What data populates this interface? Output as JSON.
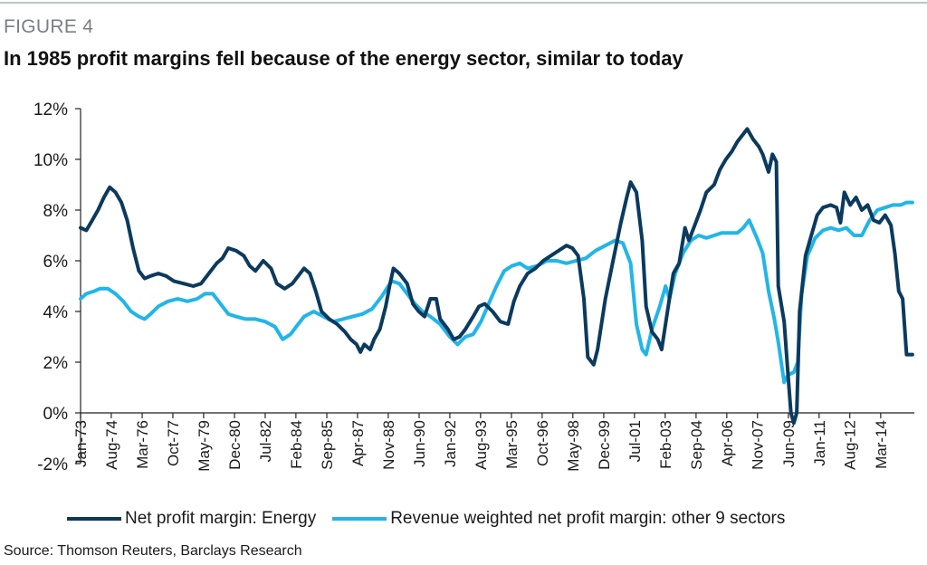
{
  "figure": {
    "label": "FIGURE 4",
    "title": "In 1985 profit margins fell because of the energy sector, similar to today",
    "source": "Source: Thomson Reuters, Barclays Research"
  },
  "chart_data": {
    "type": "line",
    "title": "In 1985 profit margins fell because of the energy sector, similar to today",
    "xlabel": "",
    "ylabel": "",
    "ylim": [
      -2,
      12
    ],
    "xlim": [
      1973.0,
      2015.9
    ],
    "y_ticks": [
      -2,
      0,
      2,
      4,
      6,
      8,
      10,
      12
    ],
    "y_tick_labels": [
      "-2%",
      "0%",
      "2%",
      "4%",
      "6%",
      "8%",
      "10%",
      "12%"
    ],
    "x_ticks": [
      1973.0,
      1974.58,
      1976.17,
      1977.75,
      1979.33,
      1980.92,
      1982.5,
      1984.08,
      1985.67,
      1987.25,
      1988.83,
      1990.42,
      1992.0,
      1993.58,
      1995.17,
      1996.75,
      1998.33,
      1999.92,
      2001.5,
      2003.08,
      2004.67,
      2006.25,
      2007.83,
      2009.42,
      2011.0,
      2012.58,
      2014.17
    ],
    "x_tick_labels": [
      "Jan-73",
      "Aug-74",
      "Mar-76",
      "Oct-77",
      "May-79",
      "Dec-80",
      "Jul-82",
      "Feb-84",
      "Sep-85",
      "Apr-87",
      "Nov-88",
      "Jun-90",
      "Jan-92",
      "Aug-93",
      "Mar-95",
      "Oct-96",
      "May-98",
      "Dec-99",
      "Jul-01",
      "Feb-03",
      "Sep-04",
      "Apr-06",
      "Nov-07",
      "Jun-09",
      "Jan-11",
      "Aug-12",
      "Mar-14"
    ],
    "grid": false,
    "legend_position": "bottom",
    "series": [
      {
        "name": "Net profit margin: Energy",
        "color": "#0b3a5e",
        "points": [
          [
            1973.0,
            7.3
          ],
          [
            1973.3,
            7.2
          ],
          [
            1973.6,
            7.6
          ],
          [
            1973.9,
            8.0
          ],
          [
            1974.2,
            8.5
          ],
          [
            1974.5,
            8.9
          ],
          [
            1974.8,
            8.7
          ],
          [
            1975.1,
            8.3
          ],
          [
            1975.4,
            7.6
          ],
          [
            1975.7,
            6.5
          ],
          [
            1976.0,
            5.6
          ],
          [
            1976.3,
            5.3
          ],
          [
            1976.6,
            5.4
          ],
          [
            1977.0,
            5.5
          ],
          [
            1977.4,
            5.4
          ],
          [
            1977.8,
            5.2
          ],
          [
            1978.3,
            5.1
          ],
          [
            1978.8,
            5.0
          ],
          [
            1979.2,
            5.1
          ],
          [
            1979.6,
            5.5
          ],
          [
            1980.0,
            5.9
          ],
          [
            1980.3,
            6.1
          ],
          [
            1980.6,
            6.5
          ],
          [
            1981.0,
            6.4
          ],
          [
            1981.4,
            6.2
          ],
          [
            1981.7,
            5.8
          ],
          [
            1982.0,
            5.6
          ],
          [
            1982.4,
            6.0
          ],
          [
            1982.8,
            5.7
          ],
          [
            1983.1,
            5.1
          ],
          [
            1983.5,
            4.9
          ],
          [
            1983.9,
            5.1
          ],
          [
            1984.2,
            5.4
          ],
          [
            1984.5,
            5.7
          ],
          [
            1984.8,
            5.5
          ],
          [
            1985.1,
            4.8
          ],
          [
            1985.4,
            4.0
          ],
          [
            1985.8,
            3.7
          ],
          [
            1986.2,
            3.5
          ],
          [
            1986.6,
            3.2
          ],
          [
            1986.9,
            2.9
          ],
          [
            1987.2,
            2.7
          ],
          [
            1987.4,
            2.4
          ],
          [
            1987.6,
            2.7
          ],
          [
            1987.9,
            2.5
          ],
          [
            1988.1,
            2.9
          ],
          [
            1988.4,
            3.3
          ],
          [
            1988.7,
            4.2
          ],
          [
            1988.9,
            5.0
          ],
          [
            1989.1,
            5.7
          ],
          [
            1989.4,
            5.5
          ],
          [
            1989.8,
            5.1
          ],
          [
            1990.1,
            4.3
          ],
          [
            1990.4,
            4.0
          ],
          [
            1990.7,
            3.8
          ],
          [
            1991.0,
            4.5
          ],
          [
            1991.3,
            4.5
          ],
          [
            1991.5,
            3.7
          ],
          [
            1991.9,
            3.3
          ],
          [
            1992.2,
            2.9
          ],
          [
            1992.5,
            3.0
          ],
          [
            1992.8,
            3.3
          ],
          [
            1993.2,
            3.8
          ],
          [
            1993.5,
            4.2
          ],
          [
            1993.8,
            4.3
          ],
          [
            1994.2,
            4.0
          ],
          [
            1994.6,
            3.6
          ],
          [
            1995.0,
            3.5
          ],
          [
            1995.3,
            4.4
          ],
          [
            1995.6,
            5.0
          ],
          [
            1996.0,
            5.5
          ],
          [
            1996.4,
            5.7
          ],
          [
            1996.8,
            6.0
          ],
          [
            1997.2,
            6.2
          ],
          [
            1997.6,
            6.4
          ],
          [
            1998.0,
            6.6
          ],
          [
            1998.3,
            6.5
          ],
          [
            1998.6,
            6.2
          ],
          [
            1998.9,
            4.5
          ],
          [
            1999.1,
            2.2
          ],
          [
            1999.4,
            1.9
          ],
          [
            1999.6,
            2.5
          ],
          [
            2000.0,
            4.5
          ],
          [
            2000.4,
            6.0
          ],
          [
            2000.8,
            7.5
          ],
          [
            2001.1,
            8.5
          ],
          [
            2001.3,
            9.1
          ],
          [
            2001.6,
            8.7
          ],
          [
            2001.9,
            6.8
          ],
          [
            2002.1,
            4.2
          ],
          [
            2002.4,
            3.2
          ],
          [
            2002.7,
            2.9
          ],
          [
            2002.9,
            2.5
          ],
          [
            2003.2,
            4.0
          ],
          [
            2003.5,
            5.5
          ],
          [
            2003.8,
            5.9
          ],
          [
            2004.1,
            7.3
          ],
          [
            2004.3,
            6.8
          ],
          [
            2004.6,
            7.4
          ],
          [
            2004.9,
            8.0
          ],
          [
            2005.2,
            8.7
          ],
          [
            2005.6,
            9.0
          ],
          [
            2005.9,
            9.6
          ],
          [
            2006.2,
            10.0
          ],
          [
            2006.5,
            10.3
          ],
          [
            2006.8,
            10.7
          ],
          [
            2007.1,
            11.0
          ],
          [
            2007.3,
            11.2
          ],
          [
            2007.6,
            10.8
          ],
          [
            2007.9,
            10.5
          ],
          [
            2008.1,
            10.2
          ],
          [
            2008.4,
            9.5
          ],
          [
            2008.6,
            10.2
          ],
          [
            2008.8,
            9.9
          ],
          [
            2008.9,
            5.0
          ],
          [
            2009.2,
            3.6
          ],
          [
            2009.4,
            1.5
          ],
          [
            2009.55,
            0.0
          ],
          [
            2009.7,
            -0.4
          ],
          [
            2009.85,
            0.0
          ],
          [
            2010.0,
            4.0
          ],
          [
            2010.3,
            6.2
          ],
          [
            2010.6,
            7.0
          ],
          [
            2010.9,
            7.8
          ],
          [
            2011.2,
            8.1
          ],
          [
            2011.6,
            8.2
          ],
          [
            2011.9,
            8.1
          ],
          [
            2012.1,
            7.5
          ],
          [
            2012.3,
            8.7
          ],
          [
            2012.6,
            8.2
          ],
          [
            2012.9,
            8.5
          ],
          [
            2013.2,
            8.0
          ],
          [
            2013.5,
            8.2
          ],
          [
            2013.8,
            7.6
          ],
          [
            2014.1,
            7.5
          ],
          [
            2014.4,
            7.8
          ],
          [
            2014.7,
            7.4
          ],
          [
            2014.9,
            6.3
          ],
          [
            2015.1,
            4.8
          ],
          [
            2015.3,
            4.5
          ],
          [
            2015.5,
            2.3
          ],
          [
            2015.8,
            2.3
          ]
        ]
      },
      {
        "name": "Revenue weighted net profit margin: other 9 sectors",
        "color": "#22b5e8",
        "points": [
          [
            1973.0,
            4.5
          ],
          [
            1973.3,
            4.7
          ],
          [
            1973.7,
            4.8
          ],
          [
            1974.0,
            4.9
          ],
          [
            1974.4,
            4.9
          ],
          [
            1974.8,
            4.7
          ],
          [
            1975.2,
            4.4
          ],
          [
            1975.6,
            4.0
          ],
          [
            1976.0,
            3.8
          ],
          [
            1976.3,
            3.7
          ],
          [
            1976.6,
            3.9
          ],
          [
            1977.0,
            4.2
          ],
          [
            1977.5,
            4.4
          ],
          [
            1978.0,
            4.5
          ],
          [
            1978.5,
            4.4
          ],
          [
            1979.0,
            4.5
          ],
          [
            1979.4,
            4.7
          ],
          [
            1979.8,
            4.7
          ],
          [
            1980.2,
            4.3
          ],
          [
            1980.6,
            3.9
          ],
          [
            1981.0,
            3.8
          ],
          [
            1981.5,
            3.7
          ],
          [
            1982.0,
            3.7
          ],
          [
            1982.5,
            3.6
          ],
          [
            1983.0,
            3.4
          ],
          [
            1983.4,
            2.9
          ],
          [
            1983.8,
            3.1
          ],
          [
            1984.2,
            3.5
          ],
          [
            1984.5,
            3.8
          ],
          [
            1985.0,
            4.0
          ],
          [
            1985.5,
            3.8
          ],
          [
            1986.0,
            3.6
          ],
          [
            1986.5,
            3.7
          ],
          [
            1987.0,
            3.8
          ],
          [
            1987.5,
            3.9
          ],
          [
            1988.0,
            4.1
          ],
          [
            1988.5,
            4.6
          ],
          [
            1989.0,
            5.2
          ],
          [
            1989.4,
            5.1
          ],
          [
            1989.8,
            4.7
          ],
          [
            1990.2,
            4.3
          ],
          [
            1990.6,
            4.0
          ],
          [
            1991.0,
            3.8
          ],
          [
            1991.5,
            3.5
          ],
          [
            1992.0,
            3.0
          ],
          [
            1992.4,
            2.7
          ],
          [
            1992.8,
            3.0
          ],
          [
            1993.2,
            3.1
          ],
          [
            1993.6,
            3.6
          ],
          [
            1994.0,
            4.3
          ],
          [
            1994.4,
            5.0
          ],
          [
            1994.8,
            5.6
          ],
          [
            1995.2,
            5.8
          ],
          [
            1995.6,
            5.9
          ],
          [
            1996.0,
            5.7
          ],
          [
            1996.5,
            5.8
          ],
          [
            1997.0,
            6.0
          ],
          [
            1997.5,
            6.0
          ],
          [
            1998.0,
            5.9
          ],
          [
            1998.5,
            6.0
          ],
          [
            1999.0,
            6.1
          ],
          [
            1999.5,
            6.4
          ],
          [
            2000.0,
            6.6
          ],
          [
            2000.5,
            6.8
          ],
          [
            2000.9,
            6.7
          ],
          [
            2001.3,
            5.9
          ],
          [
            2001.6,
            3.5
          ],
          [
            2001.9,
            2.5
          ],
          [
            2002.1,
            2.3
          ],
          [
            2002.4,
            3.3
          ],
          [
            2002.8,
            4.2
          ],
          [
            2003.1,
            5.0
          ],
          [
            2003.3,
            4.5
          ],
          [
            2003.6,
            5.5
          ],
          [
            2004.0,
            6.3
          ],
          [
            2004.4,
            6.8
          ],
          [
            2004.8,
            7.0
          ],
          [
            2005.2,
            6.9
          ],
          [
            2005.6,
            7.0
          ],
          [
            2006.0,
            7.1
          ],
          [
            2006.4,
            7.1
          ],
          [
            2006.8,
            7.1
          ],
          [
            2007.1,
            7.3
          ],
          [
            2007.4,
            7.6
          ],
          [
            2007.8,
            6.9
          ],
          [
            2008.1,
            6.3
          ],
          [
            2008.4,
            4.8
          ],
          [
            2008.7,
            3.7
          ],
          [
            2008.9,
            2.8
          ],
          [
            2009.2,
            1.2
          ],
          [
            2009.4,
            1.5
          ],
          [
            2009.7,
            1.6
          ],
          [
            2009.9,
            2.0
          ],
          [
            2010.1,
            4.7
          ],
          [
            2010.4,
            6.2
          ],
          [
            2010.8,
            6.9
          ],
          [
            2011.2,
            7.2
          ],
          [
            2011.6,
            7.3
          ],
          [
            2012.0,
            7.2
          ],
          [
            2012.4,
            7.3
          ],
          [
            2012.8,
            7.0
          ],
          [
            2013.2,
            7.0
          ],
          [
            2013.6,
            7.6
          ],
          [
            2014.0,
            8.0
          ],
          [
            2014.4,
            8.1
          ],
          [
            2014.8,
            8.2
          ],
          [
            2015.2,
            8.2
          ],
          [
            2015.5,
            8.3
          ],
          [
            2015.8,
            8.3
          ]
        ]
      }
    ]
  }
}
